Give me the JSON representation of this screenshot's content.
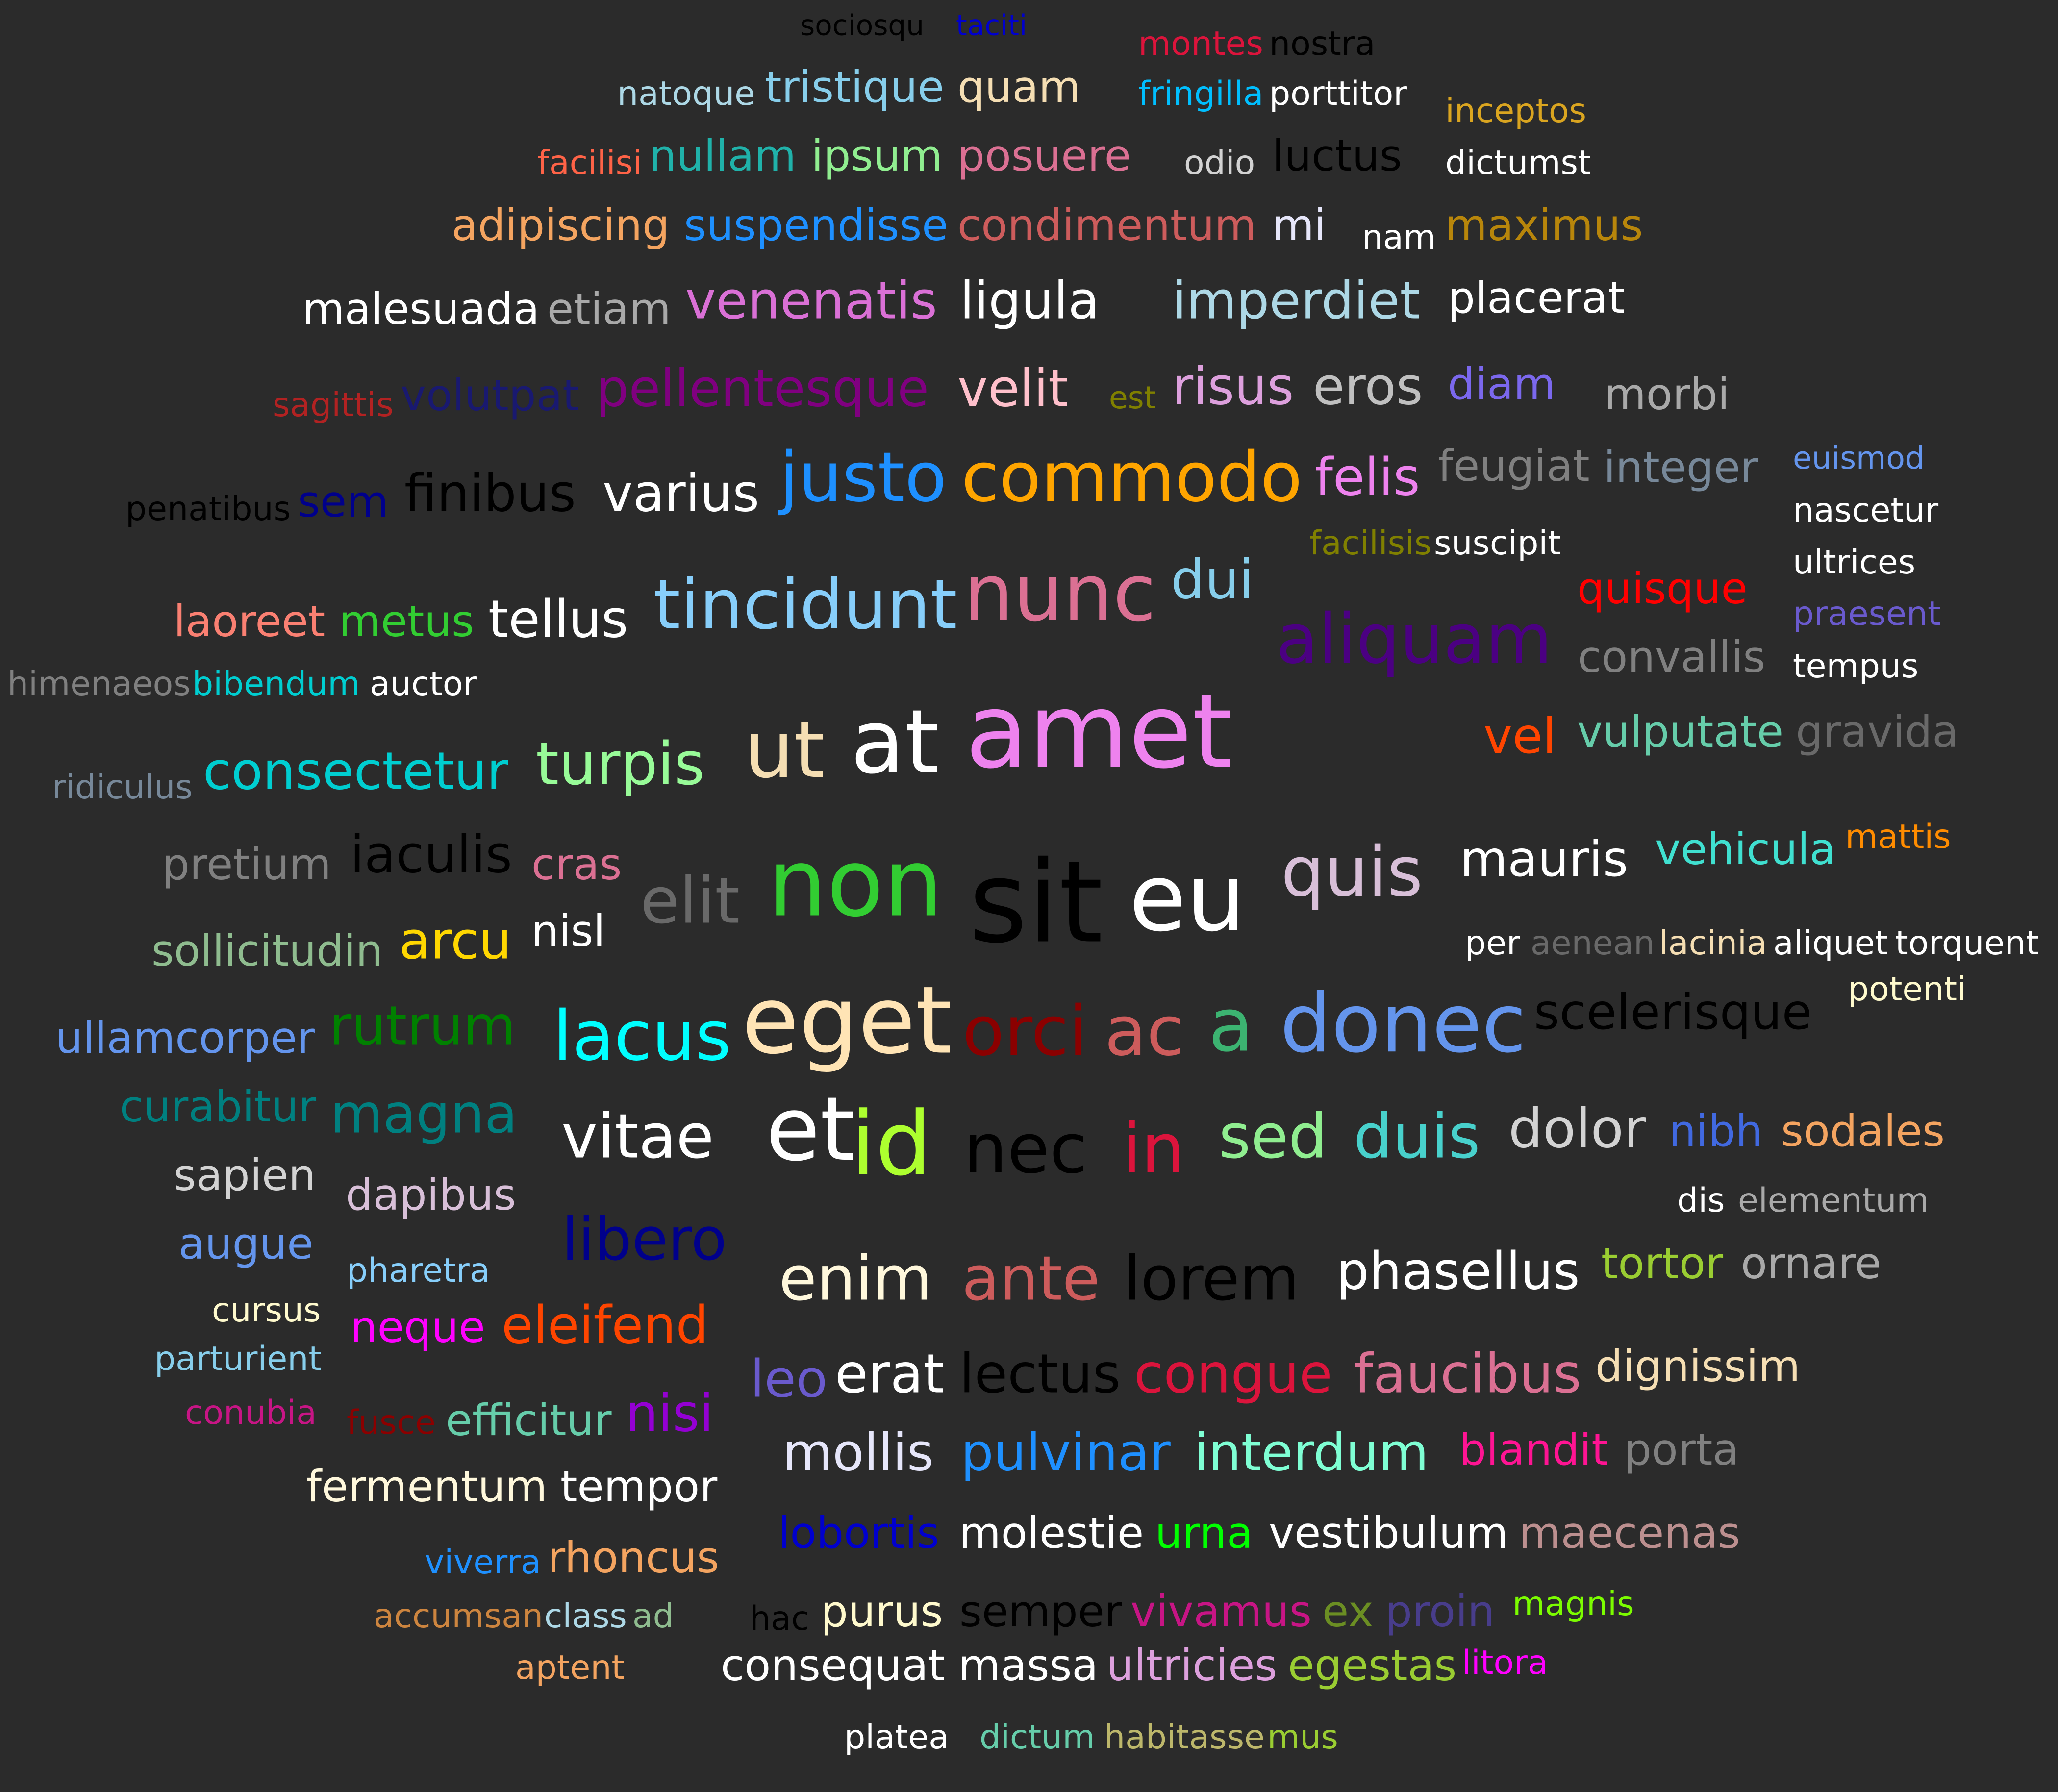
{
  "words": [
    {
      "text": "sociosqu",
      "color": "#000000"
    },
    {
      "text": "taciti",
      "color": "#0000cd"
    },
    {
      "text": "montes",
      "color": "#dc143c"
    },
    {
      "text": "nostra",
      "color": "#000000"
    },
    {
      "text": "natoque",
      "color": "#add8e6"
    },
    {
      "text": "tristique",
      "color": "#87ceeb"
    },
    {
      "text": "quam",
      "color": "#f5deb3"
    },
    {
      "text": "fringilla",
      "color": "#00bfff"
    },
    {
      "text": "porttitor",
      "color": "#ffffff"
    },
    {
      "text": "inceptos",
      "color": "#daa520"
    },
    {
      "text": "facilisi",
      "color": "#ff6347"
    },
    {
      "text": "nullam",
      "color": "#20b2aa"
    },
    {
      "text": "ipsum",
      "color": "#90ee90"
    },
    {
      "text": "posuere",
      "color": "#db7093"
    },
    {
      "text": "odio",
      "color": "#d3d3d3"
    },
    {
      "text": "luctus",
      "color": "#000000"
    },
    {
      "text": "dictumst",
      "color": "#ffffff"
    },
    {
      "text": "adipiscing",
      "color": "#f4a460"
    },
    {
      "text": "suspendisse",
      "color": "#1e90ff"
    },
    {
      "text": "condimentum",
      "color": "#cd5c5c"
    },
    {
      "text": "mi",
      "color": "#e6e6fa"
    },
    {
      "text": "nam",
      "color": "#ffffff"
    },
    {
      "text": "maximus",
      "color": "#b8860b"
    },
    {
      "text": "malesuada",
      "color": "#ffffff"
    },
    {
      "text": "etiam",
      "color": "#a9a9a9"
    },
    {
      "text": "venenatis",
      "color": "#da70d6"
    },
    {
      "text": "ligula",
      "color": "#ffffff"
    },
    {
      "text": "imperdiet",
      "color": "#add8e6"
    },
    {
      "text": "placerat",
      "color": "#ffffff"
    },
    {
      "text": "sagittis",
      "color": "#b22222"
    },
    {
      "text": "volutpat",
      "color": "#191970"
    },
    {
      "text": "pellentesque",
      "color": "#800080"
    },
    {
      "text": "velit",
      "color": "#ffc0cb"
    },
    {
      "text": "est",
      "color": "#808000"
    },
    {
      "text": "risus",
      "color": "#dda0dd"
    },
    {
      "text": "eros",
      "color": "#c0c0c0"
    },
    {
      "text": "diam",
      "color": "#7b68ee"
    },
    {
      "text": "morbi",
      "color": "#a9a9a9"
    },
    {
      "text": "euismod",
      "color": "#6495ed"
    },
    {
      "text": "penatibus",
      "color": "#000000"
    },
    {
      "text": "sem",
      "color": "#00008b"
    },
    {
      "text": "finibus",
      "color": "#000000"
    },
    {
      "text": "varius",
      "color": "#ffffff"
    },
    {
      "text": "justo",
      "color": "#1e90ff"
    },
    {
      "text": "commodo",
      "color": "#ffa500"
    },
    {
      "text": "felis",
      "color": "#ee82ee"
    },
    {
      "text": "feugiat",
      "color": "#808080"
    },
    {
      "text": "integer",
      "color": "#778899"
    },
    {
      "text": "nascetur",
      "color": "#ffffff"
    },
    {
      "text": "facilisis",
      "color": "#808000"
    },
    {
      "text": "suscipit",
      "color": "#ffffff"
    },
    {
      "text": "ultrices",
      "color": "#ffffff"
    },
    {
      "text": "laoreet",
      "color": "#fa8072"
    },
    {
      "text": "metus",
      "color": "#32cd32"
    },
    {
      "text": "tellus",
      "color": "#ffffff"
    },
    {
      "text": "tincidunt",
      "color": "#87cefa"
    },
    {
      "text": "nunc",
      "color": "#db7093"
    },
    {
      "text": "dui",
      "color": "#87ceeb"
    },
    {
      "text": "quisque",
      "color": "#ff0000"
    },
    {
      "text": "praesent",
      "color": "#6a5acd"
    },
    {
      "text": "himenaeos",
      "color": "#808080"
    },
    {
      "text": "bibendum",
      "color": "#00ced1"
    },
    {
      "text": "auctor",
      "color": "#ffffff"
    },
    {
      "text": "aliquam",
      "color": "#4b0082"
    },
    {
      "text": "convallis",
      "color": "#808080"
    },
    {
      "text": "tempus",
      "color": "#ffffff"
    },
    {
      "text": "ridiculus",
      "color": "#778899"
    },
    {
      "text": "consectetur",
      "color": "#00ced1"
    },
    {
      "text": "turpis",
      "color": "#98fb98"
    },
    {
      "text": "ut",
      "color": "#f5deb3"
    },
    {
      "text": "at",
      "color": "#ffffff"
    },
    {
      "text": "amet",
      "color": "#ee82ee"
    },
    {
      "text": "vel",
      "color": "#ff4500"
    },
    {
      "text": "vulputate",
      "color": "#66cdaa"
    },
    {
      "text": "gravida",
      "color": "#696969"
    },
    {
      "text": "pretium",
      "color": "#808080"
    },
    {
      "text": "iaculis",
      "color": "#000000"
    },
    {
      "text": "cras",
      "color": "#db7093"
    },
    {
      "text": "elit",
      "color": "#696969"
    },
    {
      "text": "non",
      "color": "#32cd32"
    },
    {
      "text": "sit",
      "color": "#000000"
    },
    {
      "text": "eu",
      "color": "#ffffff"
    },
    {
      "text": "quis",
      "color": "#d8bfd8"
    },
    {
      "text": "mauris",
      "color": "#ffffff"
    },
    {
      "text": "vehicula",
      "color": "#40e0d0"
    },
    {
      "text": "mattis",
      "color": "#ff8c00"
    },
    {
      "text": "sollicitudin",
      "color": "#8fbc8f"
    },
    {
      "text": "arcu",
      "color": "#ffd700"
    },
    {
      "text": "nisl",
      "color": "#ffffff"
    },
    {
      "text": "per",
      "color": "#ffffff"
    },
    {
      "text": "aenean",
      "color": "#696969"
    },
    {
      "text": "lacinia",
      "color": "#f5deb3"
    },
    {
      "text": "aliquet",
      "color": "#ffffff"
    },
    {
      "text": "torquent",
      "color": "#ffffff"
    },
    {
      "text": "potenti",
      "color": "#fffacd"
    },
    {
      "text": "ullamcorper",
      "color": "#6495ed"
    },
    {
      "text": "rutrum",
      "color": "#008000"
    },
    {
      "text": "lacus",
      "color": "#00ffff"
    },
    {
      "text": "eget",
      "color": "#ffe4b5"
    },
    {
      "text": "orci",
      "color": "#8b0000"
    },
    {
      "text": "ac",
      "color": "#cd5c5c"
    },
    {
      "text": "a",
      "color": "#3cb371"
    },
    {
      "text": "donec",
      "color": "#6495ed"
    },
    {
      "text": "scelerisque",
      "color": "#000000"
    },
    {
      "text": "curabitur",
      "color": "#008080"
    },
    {
      "text": "magna",
      "color": "#008080"
    },
    {
      "text": "vitae",
      "color": "#ffffff"
    },
    {
      "text": "et",
      "color": "#ffffff"
    },
    {
      "text": "id",
      "color": "#adff2f"
    },
    {
      "text": "nec",
      "color": "#000000"
    },
    {
      "text": "in",
      "color": "#dc143c"
    },
    {
      "text": "sed",
      "color": "#90ee90"
    },
    {
      "text": "duis",
      "color": "#48d1cc"
    },
    {
      "text": "dolor",
      "color": "#d3d3d3"
    },
    {
      "text": "nibh",
      "color": "#4169e1"
    },
    {
      "text": "sodales",
      "color": "#f4a460"
    },
    {
      "text": "sapien",
      "color": "#d3d3d3"
    },
    {
      "text": "dapibus",
      "color": "#d8bfd8"
    },
    {
      "text": "dis",
      "color": "#ffffff"
    },
    {
      "text": "elementum",
      "color": "#a9a9a9"
    },
    {
      "text": "augue",
      "color": "#6495ed"
    },
    {
      "text": "libero",
      "color": "#00008b"
    },
    {
      "text": "pharetra",
      "color": "#87cefa"
    },
    {
      "text": "enim",
      "color": "#fff8dc"
    },
    {
      "text": "ante",
      "color": "#cd5c5c"
    },
    {
      "text": "lorem",
      "color": "#000000"
    },
    {
      "text": "phasellus",
      "color": "#ffffff"
    },
    {
      "text": "tortor",
      "color": "#9acd32"
    },
    {
      "text": "ornare",
      "color": "#a9a9a9"
    },
    {
      "text": "cursus",
      "color": "#fffacd"
    },
    {
      "text": "neque",
      "color": "#ff00ff"
    },
    {
      "text": "eleifend",
      "color": "#ff4500"
    },
    {
      "text": "parturient",
      "color": "#87ceeb"
    },
    {
      "text": "leo",
      "color": "#6a5acd"
    },
    {
      "text": "erat",
      "color": "#ffffff"
    },
    {
      "text": "lectus",
      "color": "#000000"
    },
    {
      "text": "congue",
      "color": "#dc143c"
    },
    {
      "text": "faucibus",
      "color": "#db7093"
    },
    {
      "text": "dignissim",
      "color": "#f5deb3"
    },
    {
      "text": "conubia",
      "color": "#c71585"
    },
    {
      "text": "fusce",
      "color": "#8b0000"
    },
    {
      "text": "efficitur",
      "color": "#66cdaa"
    },
    {
      "text": "nisi",
      "color": "#9400d3"
    },
    {
      "text": "mollis",
      "color": "#e6e6fa"
    },
    {
      "text": "pulvinar",
      "color": "#1e90ff"
    },
    {
      "text": "interdum",
      "color": "#7fffd4"
    },
    {
      "text": "blandit",
      "color": "#ff1493"
    },
    {
      "text": "porta",
      "color": "#808080"
    },
    {
      "text": "fermentum",
      "color": "#fff8dc"
    },
    {
      "text": "tempor",
      "color": "#ffffff"
    },
    {
      "text": "viverra",
      "color": "#1e90ff"
    },
    {
      "text": "rhoncus",
      "color": "#f4a460"
    },
    {
      "text": "lobortis",
      "color": "#0000cd"
    },
    {
      "text": "molestie",
      "color": "#ffffff"
    },
    {
      "text": "urna",
      "color": "#00ff00"
    },
    {
      "text": "vestibulum",
      "color": "#ffffff"
    },
    {
      "text": "maecenas",
      "color": "#bc8f8f"
    },
    {
      "text": "accumsan",
      "color": "#cd853f"
    },
    {
      "text": "class",
      "color": "#add8e6"
    },
    {
      "text": "ad",
      "color": "#8fbc8f"
    },
    {
      "text": "hac",
      "color": "#000000"
    },
    {
      "text": "purus",
      "color": "#fffacd"
    },
    {
      "text": "semper",
      "color": "#000000"
    },
    {
      "text": "vivamus",
      "color": "#c71585"
    },
    {
      "text": "ex",
      "color": "#6b8e23"
    },
    {
      "text": "proin",
      "color": "#483d8b"
    },
    {
      "text": "magnis",
      "color": "#7cfc00"
    },
    {
      "text": "aptent",
      "color": "#f4a460"
    },
    {
      "text": "consequat",
      "color": "#ffffff"
    },
    {
      "text": "massa",
      "color": "#ffffff"
    },
    {
      "text": "ultricies",
      "color": "#dda0dd"
    },
    {
      "text": "egestas",
      "color": "#9acd32"
    },
    {
      "text": "litora",
      "color": "#ff00ff"
    },
    {
      "text": "platea",
      "color": "#ffffff"
    },
    {
      "text": "dictum",
      "color": "#66cdaa"
    },
    {
      "text": "habitasse",
      "color": "#bdb76b"
    },
    {
      "text": "mus",
      "color": "#9acd32"
    }
  ]
}
